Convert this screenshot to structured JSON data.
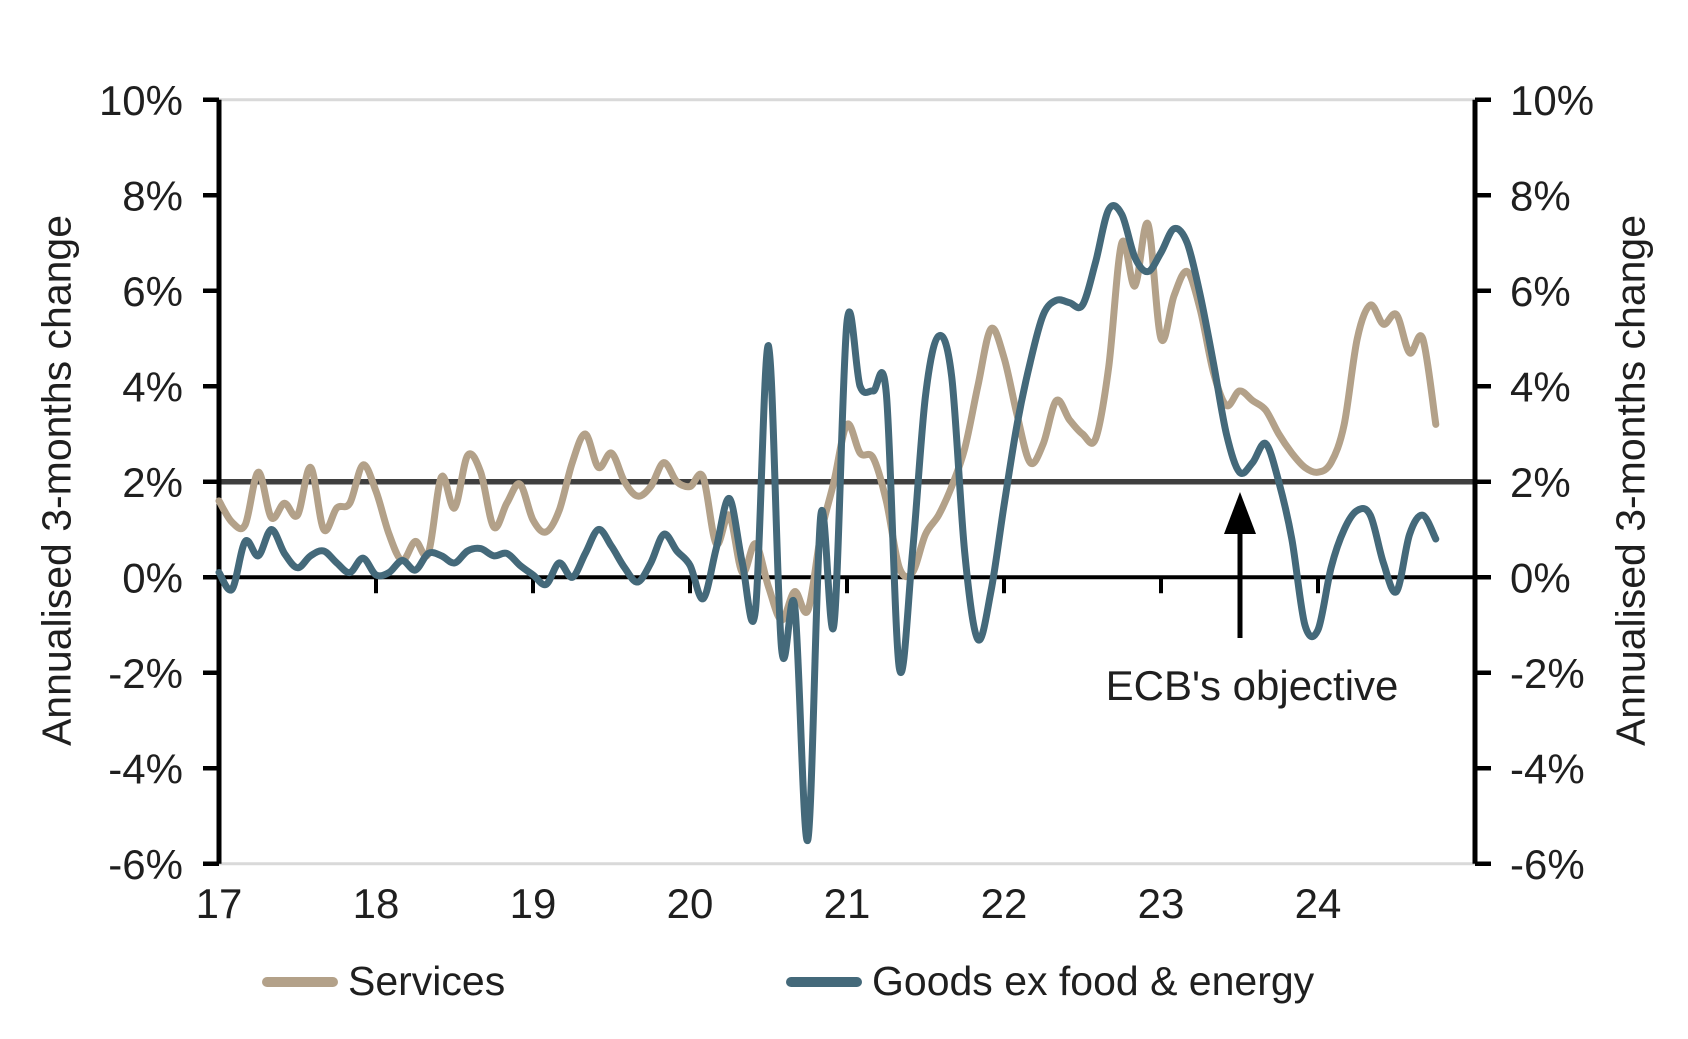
{
  "chart_data": {
    "type": "line",
    "title": "",
    "x_start": "2017-01",
    "x_end": "2024-10",
    "x_tick_labels": [
      "17",
      "18",
      "19",
      "20",
      "21",
      "22",
      "23",
      "24"
    ],
    "y_axis_label_left": "Annualised 3-months change",
    "y_axis_label_right": "Annualised 3-months change",
    "y_tick_labels": [
      "10%",
      "8%",
      "6%",
      "4%",
      "2%",
      "0%",
      "-2%",
      "-4%",
      "-6%"
    ],
    "y_tick_values": [
      10,
      8,
      6,
      4,
      2,
      0,
      -2,
      -4,
      -6
    ],
    "ylim": [
      -6,
      10
    ],
    "grid_values": [
      10,
      -6
    ],
    "target_line_value": 2,
    "annotation": {
      "text": "ECB's objective",
      "points_to_value": 2
    },
    "legend_position": "bottom",
    "series": [
      {
        "name": "Services",
        "color": "#B3A189",
        "values": [
          1.6,
          1.15,
          1.1,
          2.2,
          1.25,
          1.55,
          1.3,
          2.3,
          1.0,
          1.45,
          1.55,
          2.35,
          1.8,
          0.9,
          0.35,
          0.75,
          0.5,
          2.1,
          1.45,
          2.55,
          2.2,
          1.05,
          1.55,
          1.95,
          1.2,
          0.95,
          1.4,
          2.4,
          3.0,
          2.3,
          2.6,
          2.0,
          1.7,
          1.9,
          2.4,
          2.0,
          1.9,
          2.1,
          0.7,
          1.3,
          0.1,
          0.7,
          -0.2,
          -0.9,
          -0.3,
          -0.7,
          0.9,
          2.0,
          3.2,
          2.6,
          2.5,
          1.6,
          0.2,
          0.1,
          0.9,
          1.3,
          1.9,
          2.7,
          4.0,
          5.2,
          4.6,
          3.4,
          2.4,
          2.8,
          3.7,
          3.3,
          3.0,
          2.9,
          4.4,
          7.0,
          6.1,
          7.4,
          5.0,
          5.9,
          6.4,
          5.6,
          4.3,
          3.6,
          3.9,
          3.7,
          3.5,
          3.0,
          2.6,
          2.3,
          2.2,
          2.4,
          3.2,
          5.0,
          5.7,
          5.3,
          5.5,
          4.7,
          5.0,
          3.2
        ]
      },
      {
        "name": "Goods ex food & energy",
        "color": "#44697A",
        "values": [
          0.1,
          -0.25,
          0.75,
          0.45,
          1.0,
          0.5,
          0.2,
          0.45,
          0.55,
          0.3,
          0.1,
          0.4,
          0.05,
          0.1,
          0.35,
          0.15,
          0.5,
          0.45,
          0.3,
          0.55,
          0.6,
          0.45,
          0.5,
          0.25,
          0.05,
          -0.15,
          0.3,
          0.0,
          0.5,
          1.0,
          0.65,
          0.2,
          -0.1,
          0.3,
          0.9,
          0.55,
          0.25,
          -0.45,
          0.6,
          1.65,
          0.3,
          -0.7,
          4.85,
          -1.5,
          -0.6,
          -5.5,
          1.3,
          -1.0,
          5.35,
          4.0,
          3.9,
          3.85,
          -1.9,
          0.5,
          3.8,
          5.05,
          4.2,
          0.5,
          -1.3,
          -0.3,
          1.5,
          3.2,
          4.5,
          5.5,
          5.8,
          5.75,
          5.7,
          6.6,
          7.7,
          7.6,
          6.7,
          6.4,
          6.8,
          7.3,
          7.0,
          5.9,
          4.5,
          3.0,
          2.2,
          2.4,
          2.8,
          2.0,
          0.8,
          -1.0,
          -1.1,
          0.2,
          1.0,
          1.4,
          1.3,
          0.3,
          -0.3,
          0.9,
          1.3,
          0.8
        ]
      }
    ],
    "colors": {
      "grid": "#D9D9D9",
      "axis": "#000000",
      "target_line": "#3F3F3F",
      "text": "#1F1F1F"
    }
  },
  "legend": {
    "services_label": "Services",
    "goods_label": "Goods ex food & energy"
  },
  "axis_titles": {
    "left": "Annualised 3-months change",
    "right": "Annualised 3-months change"
  }
}
